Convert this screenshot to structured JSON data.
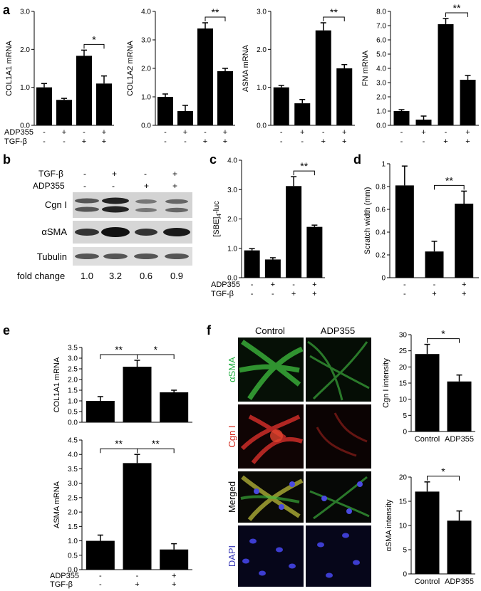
{
  "panel_labels": {
    "a": "a",
    "b": "b",
    "c": "c",
    "d": "d",
    "e": "e",
    "f": "f"
  },
  "row_labels": {
    "adp355": "ADP355",
    "tgfb": "TGF-β"
  },
  "chart_data": [
    {
      "id": "a1",
      "type": "bar",
      "ylabel": "COL1A1 mRNA",
      "ylim": [
        0,
        3.0
      ],
      "yticks": [
        "0.0",
        "1.0",
        "2.0",
        "3.0"
      ],
      "values": [
        1.0,
        0.67,
        1.83,
        1.1
      ],
      "errors": [
        0.1,
        0.04,
        0.15,
        0.2
      ],
      "adp355": [
        "-",
        "+",
        "-",
        "+"
      ],
      "tgfb": [
        "-",
        "-",
        "+",
        "+"
      ],
      "sig": {
        "from": 2,
        "to": 3,
        "label": "*"
      }
    },
    {
      "id": "a2",
      "type": "bar",
      "ylabel": "COL1A2 mRNA",
      "ylim": [
        0,
        4.0
      ],
      "yticks": [
        "0.0",
        "1.0",
        "2.0",
        "3.0",
        "4.0"
      ],
      "values": [
        1.0,
        0.5,
        3.4,
        1.9
      ],
      "errors": [
        0.1,
        0.2,
        0.2,
        0.1
      ],
      "adp355": [
        "-",
        "+",
        "-",
        "+"
      ],
      "tgfb": [
        "-",
        "-",
        "+",
        "+"
      ],
      "sig": {
        "from": 2,
        "to": 3,
        "label": "**"
      }
    },
    {
      "id": "a3",
      "type": "bar",
      "ylabel": "ASMA mRNA",
      "ylim": [
        0,
        3.0
      ],
      "yticks": [
        "0.0",
        "1.0",
        "2.0",
        "3.0"
      ],
      "values": [
        1.0,
        0.58,
        2.5,
        1.5
      ],
      "errors": [
        0.05,
        0.1,
        0.2,
        0.1
      ],
      "adp355": [
        "-",
        "+",
        "-",
        "+"
      ],
      "tgfb": [
        "-",
        "-",
        "+",
        "+"
      ],
      "sig": {
        "from": 2,
        "to": 3,
        "label": "**"
      }
    },
    {
      "id": "a4",
      "type": "bar",
      "ylabel": "FN mRNA",
      "ylim": [
        0,
        8.0
      ],
      "yticks": [
        "0.0",
        "1.0",
        "2.0",
        "3.0",
        "4.0",
        "5.0",
        "6.0",
        "7.0",
        "8.0"
      ],
      "values": [
        1.0,
        0.4,
        7.1,
        3.2
      ],
      "errors": [
        0.1,
        0.25,
        0.4,
        0.3
      ],
      "adp355": [
        "-",
        "+",
        "-",
        "+"
      ],
      "tgfb": [
        "-",
        "-",
        "+",
        "+"
      ],
      "sig": {
        "from": 2,
        "to": 3,
        "label": "**"
      }
    },
    {
      "id": "c",
      "type": "bar",
      "ylabel": "[SBE]4-luc",
      "ylim": [
        0,
        4.0
      ],
      "yticks": [
        "0.0",
        "1.0",
        "2.0",
        "3.0",
        "4.0"
      ],
      "values": [
        0.93,
        0.62,
        3.12,
        1.73
      ],
      "errors": [
        0.06,
        0.06,
        0.32,
        0.06
      ],
      "adp355": [
        "-",
        "+",
        "-",
        "+"
      ],
      "tgfb": [
        "-",
        "-",
        "+",
        "+"
      ],
      "sig": {
        "from": 2,
        "to": 3,
        "label": "**"
      }
    },
    {
      "id": "d",
      "type": "bar",
      "ylabel": "Scratch width (mm)",
      "ylim": [
        0,
        1.0
      ],
      "yticks": [
        "0",
        "0.2",
        "0.4",
        "0.6",
        "0.8",
        "1"
      ],
      "values": [
        0.81,
        0.23,
        0.65
      ],
      "errors": [
        0.17,
        0.09,
        0.11
      ],
      "adp355": [
        "-",
        "-",
        "+"
      ],
      "tgfb": [
        "-",
        "+",
        "+"
      ],
      "sig": {
        "from": 1,
        "to": 2,
        "label": "**"
      }
    },
    {
      "id": "e1",
      "type": "bar",
      "ylabel": "COL1A1 mRNA",
      "ylim": [
        0,
        3.5
      ],
      "yticks": [
        "0.0",
        "0.5",
        "1.0",
        "1.5",
        "2.0",
        "2.5",
        "3.0",
        "3.5"
      ],
      "values": [
        1.0,
        2.6,
        1.4
      ],
      "errors": [
        0.2,
        0.3,
        0.1
      ],
      "sigs": [
        {
          "from": 0,
          "to": 1,
          "label": "**"
        },
        {
          "from": 1,
          "to": 2,
          "label": "*"
        }
      ]
    },
    {
      "id": "e2",
      "type": "bar",
      "ylabel": "ASMA mRNA",
      "ylim": [
        0,
        4.5
      ],
      "yticks": [
        "0.0",
        "0.5",
        "1.0",
        "1.5",
        "2.0",
        "2.5",
        "3.0",
        "3.5",
        "4.0",
        "4.5"
      ],
      "values": [
        1.0,
        3.7,
        0.7
      ],
      "errors": [
        0.2,
        0.3,
        0.2
      ],
      "adp355": [
        "-",
        "-",
        "+"
      ],
      "tgfb": [
        "-",
        "+",
        "+"
      ],
      "sigs": [
        {
          "from": 0,
          "to": 1,
          "label": "**"
        },
        {
          "from": 1,
          "to": 2,
          "label": "**"
        }
      ]
    },
    {
      "id": "f1",
      "type": "bar",
      "ylabel": "Cgn I intensity",
      "ylim": [
        0,
        30
      ],
      "yticks": [
        "0",
        "5",
        "10",
        "15",
        "20",
        "25",
        "30"
      ],
      "categories": [
        "Control",
        "ADP355"
      ],
      "values": [
        24,
        15.5
      ],
      "errors": [
        3,
        2
      ],
      "sig": {
        "from": 0,
        "to": 1,
        "label": "*"
      }
    },
    {
      "id": "f2",
      "type": "bar",
      "ylabel": "αSMA intensity",
      "ylim": [
        0,
        20
      ],
      "yticks": [
        "0",
        "5",
        "10",
        "15",
        "20"
      ],
      "categories": [
        "Control",
        "ADP355"
      ],
      "values": [
        17,
        11
      ],
      "errors": [
        2,
        2
      ],
      "sig": {
        "from": 0,
        "to": 1,
        "label": "*"
      }
    }
  ],
  "blot": {
    "tgfb_label": "TGF-β",
    "adp_label": "ADP355",
    "tgfb": [
      "-",
      "+",
      "-",
      "+"
    ],
    "adp355": [
      "-",
      "-",
      "+",
      "+"
    ],
    "rows": [
      "Cgn I",
      "αSMA",
      "Tubulin"
    ],
    "fold_label": "fold change",
    "fold_values": [
      "1.0",
      "3.2",
      "0.6",
      "0.9"
    ]
  },
  "micro": {
    "col_headers": [
      "Control",
      "ADP355"
    ],
    "row_labels": [
      "αSMA",
      "Cgn I",
      "Merged",
      "DAPI"
    ],
    "row_colors": [
      "#2db34a",
      "#d42a1e",
      "#000000",
      "#3a3ab8"
    ]
  }
}
